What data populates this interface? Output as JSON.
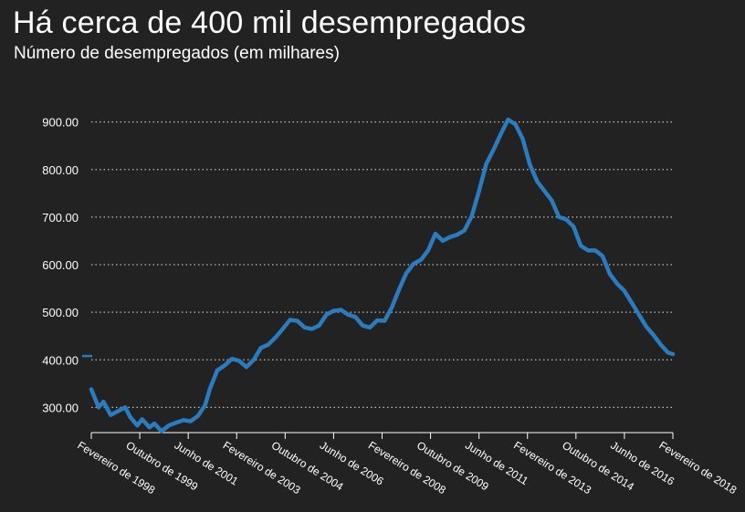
{
  "title": "Há cerca de 400 mil desempregados",
  "subtitle": "Número de desempregados (em milhares)",
  "colors": {
    "background": "#222222",
    "line": "#2b7bbf",
    "grid": "#bdbdbd",
    "text": "#ffffff"
  },
  "chart_data": {
    "type": "line",
    "title": "Há cerca de 400 mil desempregados",
    "subtitle": "Número de desempregados (em milhares)",
    "y_ticks": [
      "300.00",
      "400.00",
      "500.00",
      "600.00",
      "700.00",
      "800.00",
      "900.00"
    ],
    "y_tick_values": [
      300,
      400,
      500,
      600,
      700,
      800,
      900
    ],
    "ylim": [
      247,
      930
    ],
    "x_tick_labels": [
      "Fevereiro de 1998",
      "Outubro de 1999",
      "Junho de 2001",
      "Fevereiro de 2003",
      "Outubro de 2004",
      "Junho de 2006",
      "Fevereiro de 2008",
      "Outubro de 2009",
      "Junho de 2011",
      "Fevereiro de 2013",
      "Outubro de 2014",
      "Junho de 2016",
      "Fevereiro de 2018"
    ],
    "x_tick_dates": [
      "1998-02",
      "1999-10",
      "2001-06",
      "2003-02",
      "2004-10",
      "2006-06",
      "2008-02",
      "2009-10",
      "2011-06",
      "2013-02",
      "2014-10",
      "2016-06",
      "2018-02"
    ],
    "grid": "horizontal dotted",
    "legend": "none",
    "reference_marker_value": 408,
    "series": [
      {
        "color": "#2b7bbf",
        "points": [
          [
            "1998-02",
            338
          ],
          [
            "1998-05",
            300
          ],
          [
            "1998-07",
            312
          ],
          [
            "1998-10",
            284
          ],
          [
            "1999-01",
            292
          ],
          [
            "1999-04",
            300
          ],
          [
            "1999-06",
            280
          ],
          [
            "1999-09",
            262
          ],
          [
            "1999-11",
            275
          ],
          [
            "2000-02",
            258
          ],
          [
            "2000-04",
            266
          ],
          [
            "2000-07",
            250
          ],
          [
            "2000-10",
            262
          ],
          [
            "2001-01",
            268
          ],
          [
            "2001-04",
            273
          ],
          [
            "2001-07",
            271
          ],
          [
            "2001-10",
            282
          ],
          [
            "2002-01",
            305
          ],
          [
            "2002-03",
            340
          ],
          [
            "2002-06",
            378
          ],
          [
            "2002-09",
            388
          ],
          [
            "2002-12",
            402
          ],
          [
            "2003-03",
            398
          ],
          [
            "2003-06",
            385
          ],
          [
            "2003-09",
            400
          ],
          [
            "2003-12",
            425
          ],
          [
            "2004-03",
            432
          ],
          [
            "2004-06",
            447
          ],
          [
            "2004-09",
            465
          ],
          [
            "2004-12",
            484
          ],
          [
            "2005-03",
            482
          ],
          [
            "2005-06",
            468
          ],
          [
            "2005-09",
            465
          ],
          [
            "2005-12",
            472
          ],
          [
            "2006-03",
            495
          ],
          [
            "2006-06",
            503
          ],
          [
            "2006-09",
            505
          ],
          [
            "2006-12",
            495
          ],
          [
            "2007-03",
            490
          ],
          [
            "2007-06",
            472
          ],
          [
            "2007-09",
            468
          ],
          [
            "2007-12",
            483
          ],
          [
            "2008-03",
            482
          ],
          [
            "2008-06",
            510
          ],
          [
            "2008-09",
            548
          ],
          [
            "2008-12",
            582
          ],
          [
            "2009-03",
            602
          ],
          [
            "2009-06",
            610
          ],
          [
            "2009-09",
            630
          ],
          [
            "2009-12",
            665
          ],
          [
            "2010-03",
            650
          ],
          [
            "2010-06",
            658
          ],
          [
            "2010-09",
            663
          ],
          [
            "2010-12",
            672
          ],
          [
            "2011-03",
            702
          ],
          [
            "2011-06",
            755
          ],
          [
            "2011-09",
            812
          ],
          [
            "2011-12",
            842
          ],
          [
            "2012-03",
            875
          ],
          [
            "2012-06",
            905
          ],
          [
            "2012-09",
            895
          ],
          [
            "2012-12",
            865
          ],
          [
            "2013-03",
            810
          ],
          [
            "2013-06",
            775
          ],
          [
            "2013-09",
            755
          ],
          [
            "2013-12",
            735
          ],
          [
            "2014-03",
            700
          ],
          [
            "2014-06",
            695
          ],
          [
            "2014-09",
            680
          ],
          [
            "2014-12",
            640
          ],
          [
            "2015-03",
            630
          ],
          [
            "2015-06",
            630
          ],
          [
            "2015-09",
            618
          ],
          [
            "2015-12",
            580
          ],
          [
            "2016-03",
            560
          ],
          [
            "2016-06",
            545
          ],
          [
            "2016-09",
            520
          ],
          [
            "2016-12",
            495
          ],
          [
            "2017-03",
            470
          ],
          [
            "2017-06",
            452
          ],
          [
            "2017-09",
            432
          ],
          [
            "2017-12",
            415
          ],
          [
            "2018-02",
            412
          ]
        ]
      }
    ]
  }
}
